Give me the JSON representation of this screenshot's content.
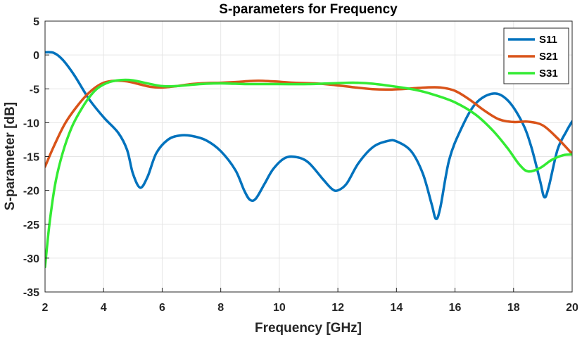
{
  "chart_data": {
    "type": "line",
    "title": "S-parameters for Frequency",
    "xlabel": "Frequency [GHz]",
    "ylabel": "S-parameter [dB]",
    "xlim": [
      2,
      20
    ],
    "ylim": [
      -35,
      5
    ],
    "xticks": [
      2,
      4,
      6,
      8,
      10,
      12,
      14,
      16,
      18,
      20
    ],
    "yticks": [
      5,
      0,
      -5,
      -10,
      -15,
      -20,
      -25,
      -30,
      -35
    ],
    "grid": true,
    "legend_position": "top-right",
    "series": [
      {
        "name": "S11",
        "color": "#0072BD",
        "points": [
          [
            2,
            0.4
          ],
          [
            2.3,
            0.3
          ],
          [
            2.6,
            -0.7
          ],
          [
            3,
            -3
          ],
          [
            3.5,
            -6.5
          ],
          [
            4,
            -9.2
          ],
          [
            4.5,
            -11.5
          ],
          [
            4.8,
            -14
          ],
          [
            5,
            -17.5
          ],
          [
            5.25,
            -19.6
          ],
          [
            5.5,
            -18
          ],
          [
            5.8,
            -14.5
          ],
          [
            6.2,
            -12.5
          ],
          [
            6.6,
            -11.9
          ],
          [
            7,
            -11.95
          ],
          [
            7.5,
            -12.6
          ],
          [
            8,
            -14.2
          ],
          [
            8.5,
            -17
          ],
          [
            8.8,
            -20
          ],
          [
            9,
            -21.4
          ],
          [
            9.2,
            -21.2
          ],
          [
            9.5,
            -19
          ],
          [
            9.8,
            -16.8
          ],
          [
            10.2,
            -15.2
          ],
          [
            10.6,
            -15.1
          ],
          [
            11,
            -15.9
          ],
          [
            11.5,
            -18.4
          ],
          [
            11.8,
            -19.8
          ],
          [
            12,
            -20
          ],
          [
            12.3,
            -19
          ],
          [
            12.7,
            -16
          ],
          [
            13.2,
            -13.6
          ],
          [
            13.7,
            -12.7
          ],
          [
            14,
            -12.75
          ],
          [
            14.5,
            -14.2
          ],
          [
            14.9,
            -17.5
          ],
          [
            15.2,
            -22
          ],
          [
            15.35,
            -24.2
          ],
          [
            15.5,
            -22.5
          ],
          [
            15.8,
            -15.5
          ],
          [
            16.2,
            -11
          ],
          [
            16.7,
            -7.2
          ],
          [
            17.3,
            -5.7
          ],
          [
            17.8,
            -6.7
          ],
          [
            18.3,
            -10
          ],
          [
            18.6,
            -13.5
          ],
          [
            18.9,
            -18.5
          ],
          [
            19.05,
            -21
          ],
          [
            19.2,
            -19.5
          ],
          [
            19.5,
            -14
          ],
          [
            19.8,
            -11.3
          ],
          [
            20,
            -9.8
          ]
        ]
      },
      {
        "name": "S21",
        "color": "#D95319",
        "points": [
          [
            2,
            -16.5
          ],
          [
            2.3,
            -13.5
          ],
          [
            2.7,
            -10
          ],
          [
            3.2,
            -7
          ],
          [
            3.6,
            -5.2
          ],
          [
            4,
            -4.1
          ],
          [
            4.4,
            -3.8
          ],
          [
            4.8,
            -3.9
          ],
          [
            5.2,
            -4.3
          ],
          [
            5.6,
            -4.7
          ],
          [
            6,
            -4.8
          ],
          [
            6.5,
            -4.6
          ],
          [
            7,
            -4.3
          ],
          [
            7.5,
            -4.15
          ],
          [
            8,
            -4.1
          ],
          [
            8.5,
            -4
          ],
          [
            9,
            -3.85
          ],
          [
            9.3,
            -3.8
          ],
          [
            9.8,
            -3.9
          ],
          [
            10.5,
            -4.1
          ],
          [
            11.2,
            -4.2
          ],
          [
            11.8,
            -4.4
          ],
          [
            12.5,
            -4.75
          ],
          [
            13.2,
            -5.05
          ],
          [
            13.8,
            -5.1
          ],
          [
            14.5,
            -4.95
          ],
          [
            15,
            -4.8
          ],
          [
            15.5,
            -4.8
          ],
          [
            16,
            -5.3
          ],
          [
            16.5,
            -6.6
          ],
          [
            17,
            -8.2
          ],
          [
            17.5,
            -9.5
          ],
          [
            18,
            -9.9
          ],
          [
            18.5,
            -9.85
          ],
          [
            19,
            -10.4
          ],
          [
            19.5,
            -12.3
          ],
          [
            20,
            -14.6
          ]
        ]
      },
      {
        "name": "S31",
        "color": "#33EB33",
        "points": [
          [
            2,
            -31.3
          ],
          [
            2.15,
            -25
          ],
          [
            2.35,
            -19
          ],
          [
            2.6,
            -14.5
          ],
          [
            2.9,
            -10.8
          ],
          [
            3.2,
            -8.3
          ],
          [
            3.5,
            -6.3
          ],
          [
            3.8,
            -4.9
          ],
          [
            4.2,
            -4
          ],
          [
            4.6,
            -3.7
          ],
          [
            5,
            -3.75
          ],
          [
            5.5,
            -4.2
          ],
          [
            6,
            -4.6
          ],
          [
            6.5,
            -4.6
          ],
          [
            7,
            -4.4
          ],
          [
            7.5,
            -4.25
          ],
          [
            8,
            -4.2
          ],
          [
            8.5,
            -4.25
          ],
          [
            9,
            -4.3
          ],
          [
            10,
            -4.3
          ],
          [
            11,
            -4.3
          ],
          [
            12,
            -4.15
          ],
          [
            12.6,
            -4.1
          ],
          [
            13.2,
            -4.25
          ],
          [
            14,
            -4.7
          ],
          [
            14.7,
            -5.2
          ],
          [
            15.3,
            -5.9
          ],
          [
            16,
            -7
          ],
          [
            16.7,
            -8.8
          ],
          [
            17.3,
            -11.2
          ],
          [
            17.8,
            -13.8
          ],
          [
            18.2,
            -16.2
          ],
          [
            18.5,
            -17.2
          ],
          [
            18.9,
            -16.7
          ],
          [
            19.3,
            -15.5
          ],
          [
            19.7,
            -14.8
          ],
          [
            20,
            -14.7
          ]
        ]
      }
    ]
  }
}
